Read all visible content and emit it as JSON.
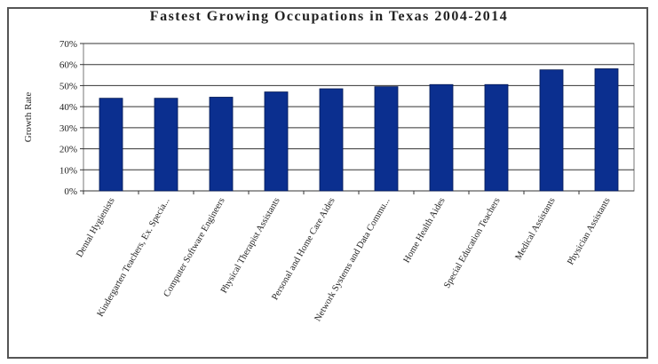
{
  "chart_data": {
    "type": "bar",
    "title": "Fastest Growing Occupations in Texas 2004-2014",
    "xlabel": "",
    "ylabel": "Growth Rate",
    "ylim": [
      0,
      70
    ],
    "yticks": [
      0,
      10,
      20,
      30,
      40,
      50,
      60,
      70
    ],
    "ytick_labels": [
      "0%",
      "10%",
      "20%",
      "30%",
      "40%",
      "50%",
      "60%",
      "70%"
    ],
    "grid": true,
    "legend": "none",
    "bar_color": "#0b2f8f",
    "categories": [
      "Dental Hygienists",
      "Kindergarten Teachers, Ex. Specia...",
      "Computer Software Engineers",
      "Physical Therapist Assistants",
      "Personal and Home Care Aides",
      "Network Systems and Data Commu...",
      "Home Health Aides",
      "Special Education Teachers",
      "Medical Assistants",
      "Physician Assistants"
    ],
    "values": [
      44,
      44,
      44.5,
      47,
      48.5,
      49.5,
      50.5,
      50.5,
      57.5,
      58
    ]
  }
}
